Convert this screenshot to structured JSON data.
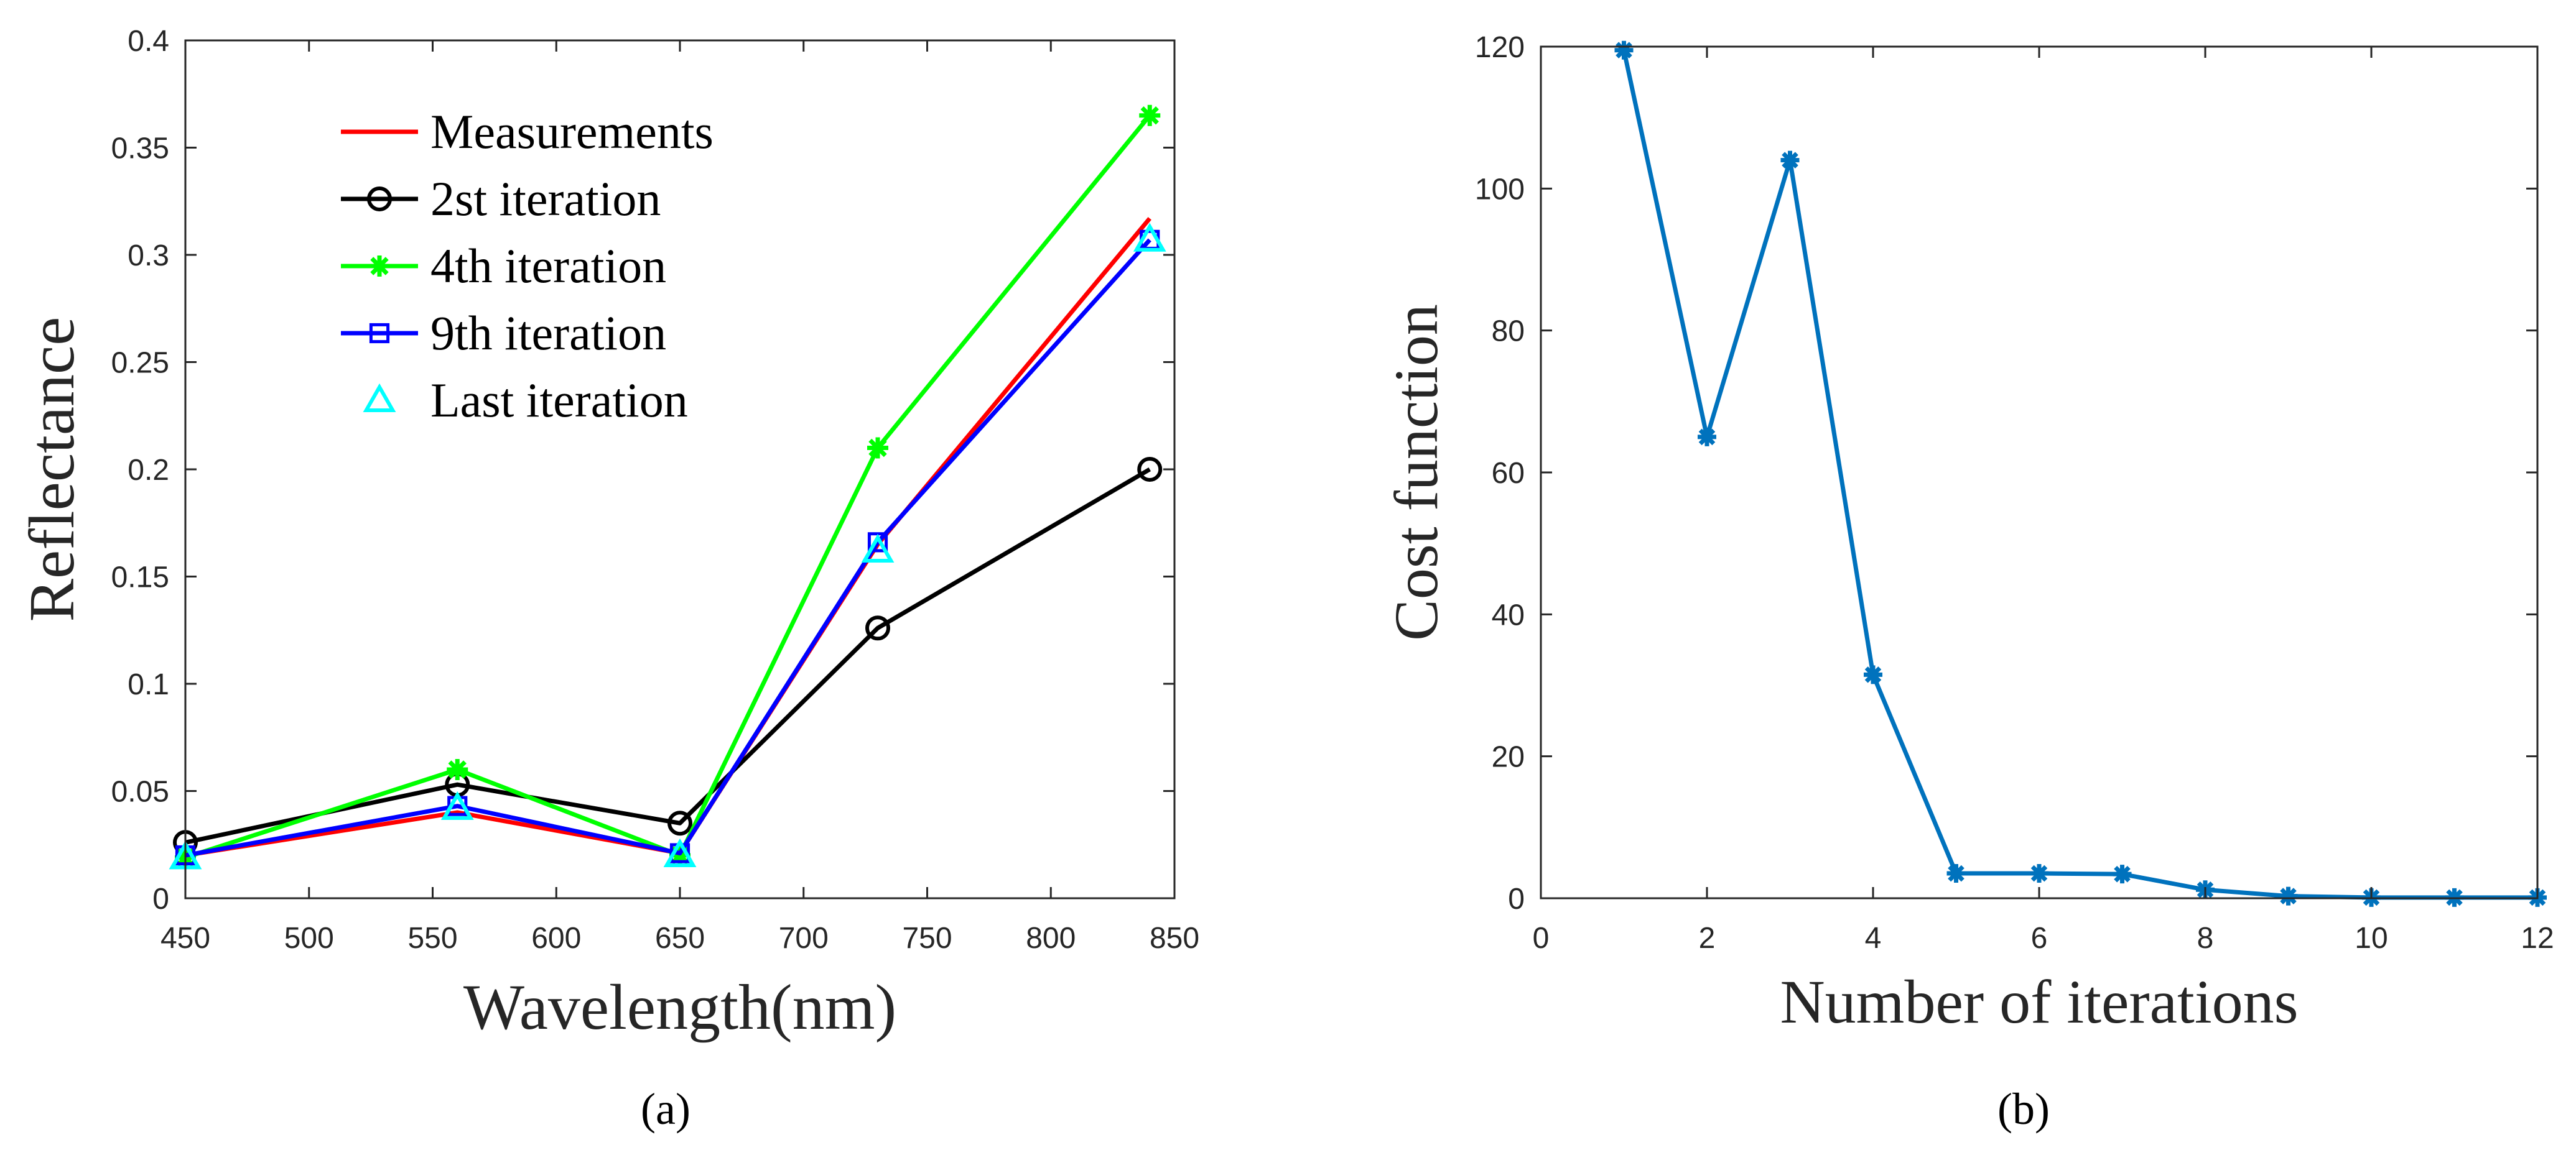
{
  "chart_data": [
    {
      "type": "line",
      "panel_label": "(a)",
      "xlabel": "Wavelength(nm)",
      "ylabel": "Reflectance",
      "xlim": [
        450,
        850
      ],
      "ylim": [
        0,
        0.4
      ],
      "xticks": [
        450,
        500,
        550,
        600,
        650,
        700,
        750,
        800,
        850
      ],
      "xtick_labels": [
        "450",
        "500",
        "550",
        "600",
        "650",
        "700",
        "750",
        "800",
        "850"
      ],
      "yticks": [
        0,
        0.05,
        0.1,
        0.15,
        0.2,
        0.25,
        0.3,
        0.35,
        0.4
      ],
      "ytick_labels": [
        "0",
        "0.05",
        "0.1",
        "0.15",
        "0.2",
        "0.25",
        "0.3",
        "0.35",
        "0.4"
      ],
      "x": [
        450,
        560,
        650,
        730,
        840
      ],
      "legend_position": "top-center",
      "series": [
        {
          "name": "Measurements",
          "color": "#ff0000",
          "marker": "none",
          "line": true,
          "values": [
            0.02,
            0.04,
            0.021,
            0.165,
            0.317
          ]
        },
        {
          "name": "2st iteration",
          "color": "#000000",
          "marker": "circle",
          "line": true,
          "values": [
            0.026,
            0.053,
            0.035,
            0.126,
            0.2
          ]
        },
        {
          "name": "4th iteration",
          "color": "#00ff00",
          "marker": "asterisk",
          "line": true,
          "values": [
            0.019,
            0.06,
            0.02,
            0.21,
            0.365
          ]
        },
        {
          "name": "9th iteration",
          "color": "#0000ff",
          "marker": "square",
          "line": true,
          "values": [
            0.02,
            0.043,
            0.021,
            0.166,
            0.307
          ]
        },
        {
          "name": "Last iteration",
          "color": "#00ffff",
          "marker": "triangle",
          "line": false,
          "values": [
            0.019,
            0.042,
            0.02,
            0.162,
            0.307
          ]
        }
      ]
    },
    {
      "type": "line",
      "panel_label": "(b)",
      "xlabel": "Number of iterations",
      "ylabel": "Cost function",
      "xlim": [
        0,
        12
      ],
      "ylim": [
        0,
        120
      ],
      "xticks": [
        0,
        2,
        4,
        6,
        8,
        10,
        12
      ],
      "xtick_labels": [
        "0",
        "2",
        "4",
        "6",
        "8",
        "10",
        "12"
      ],
      "yticks": [
        0,
        20,
        40,
        60,
        80,
        100,
        120
      ],
      "ytick_labels": [
        "0",
        "20",
        "40",
        "60",
        "80",
        "100",
        "120"
      ],
      "x": [
        1,
        2,
        3,
        4,
        5,
        6,
        7,
        8,
        9,
        10,
        11,
        12
      ],
      "series": [
        {
          "name": "Cost",
          "color": "#0072bd",
          "marker": "asterisk",
          "line": true,
          "values": [
            119.5,
            65,
            104,
            31.5,
            3.5,
            3.5,
            3.4,
            1.2,
            0.3,
            0.1,
            0.1,
            0.1
          ]
        }
      ]
    }
  ]
}
